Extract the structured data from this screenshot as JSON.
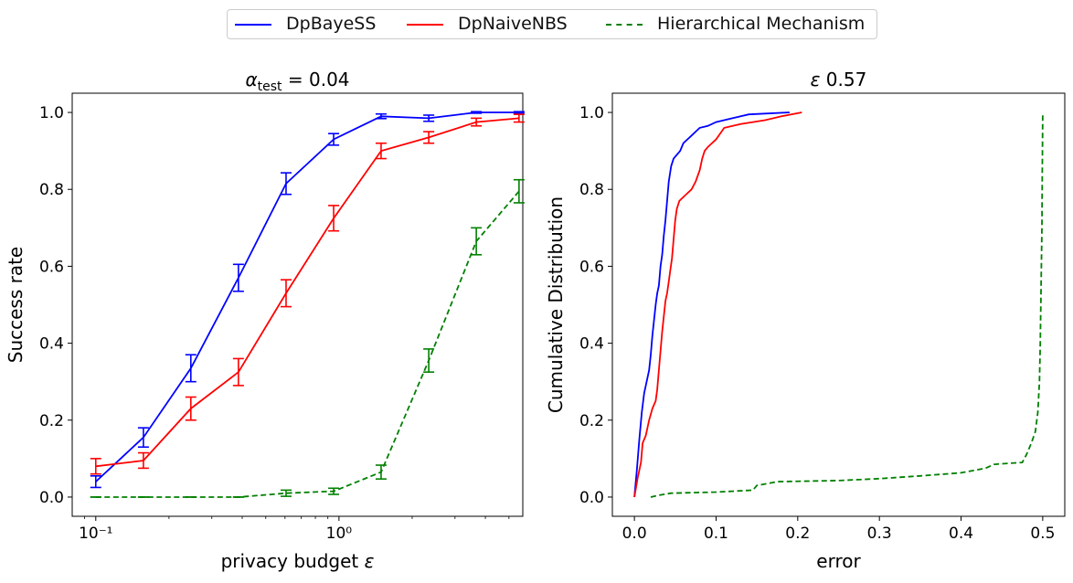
{
  "legend": {
    "items": [
      {
        "label": "DpBayeSS",
        "color": "#0000ff",
        "dash": "solid"
      },
      {
        "label": "DpNaiveNBS",
        "color": "#ff0000",
        "dash": "solid"
      },
      {
        "label": "Hierarchical Mechanism",
        "color": "#008000",
        "dash": "dashed"
      }
    ]
  },
  "chart_data": [
    {
      "type": "line",
      "title_prefix": "α",
      "title_sub": "test",
      "title_suffix": " = 0.04",
      "xlabel": "privacy budget ε",
      "ylabel": "Success rate",
      "xscale": "log",
      "xlim": [
        0.08,
        5.7
      ],
      "ylim": [
        -0.05,
        1.05
      ],
      "yticks": [
        0.0,
        0.2,
        0.4,
        0.6,
        0.8,
        1.0
      ],
      "ytick_labels": [
        "0.0",
        "0.2",
        "0.4",
        "0.6",
        "0.8",
        "1.0"
      ],
      "xticks": [
        0.1,
        1
      ],
      "xtick_labels": [
        "10⁻¹",
        "10⁰"
      ],
      "x": [
        0.1,
        0.157,
        0.246,
        0.386,
        0.606,
        0.951,
        1.49,
        2.34,
        3.67,
        5.5
      ],
      "series": [
        {
          "name": "DpBayeSS",
          "color": "#0000ff",
          "dash": "solid",
          "values": [
            0.04,
            0.155,
            0.335,
            0.57,
            0.815,
            0.93,
            0.99,
            0.985,
            1.0,
            1.0
          ],
          "errors": [
            0.015,
            0.025,
            0.035,
            0.035,
            0.028,
            0.015,
            0.006,
            0.008,
            0.002,
            0.002
          ]
        },
        {
          "name": "DpNaiveNBS",
          "color": "#ff0000",
          "dash": "solid",
          "values": [
            0.08,
            0.095,
            0.23,
            0.325,
            0.53,
            0.725,
            0.9,
            0.935,
            0.975,
            0.985
          ],
          "errors": [
            0.02,
            0.02,
            0.03,
            0.035,
            0.035,
            0.033,
            0.02,
            0.015,
            0.01,
            0.01
          ]
        },
        {
          "name": "Hierarchical Mechanism",
          "color": "#008000",
          "dash": "dashed",
          "values": [
            0.0,
            0.0,
            0.0,
            0.0,
            0.01,
            0.015,
            0.065,
            0.355,
            0.665,
            0.795
          ],
          "errors": [
            0.0,
            0.0,
            0.0,
            0.0,
            0.008,
            0.008,
            0.018,
            0.03,
            0.035,
            0.03
          ]
        }
      ]
    },
    {
      "type": "line",
      "title_prefix": "ε",
      "title_suffix": " 0.57",
      "xlabel": "error",
      "ylabel": "Cumulative Distribution",
      "xlim": [
        -0.027,
        0.527
      ],
      "ylim": [
        -0.05,
        1.05
      ],
      "xticks": [
        0.0,
        0.1,
        0.2,
        0.3,
        0.4,
        0.5
      ],
      "xtick_labels": [
        "0.0",
        "0.1",
        "0.2",
        "0.3",
        "0.4",
        "0.5"
      ],
      "yticks": [
        0.0,
        0.2,
        0.4,
        0.6,
        0.8,
        1.0
      ],
      "ytick_labels": [
        "0.0",
        "0.2",
        "0.4",
        "0.6",
        "0.8",
        "1.0"
      ],
      "series": [
        {
          "name": "DpBayeSS",
          "color": "#0000ff",
          "dash": "solid",
          "points": [
            [
              0.0,
              0.0
            ],
            [
              0.003,
              0.07
            ],
            [
              0.006,
              0.15
            ],
            [
              0.009,
              0.22
            ],
            [
              0.012,
              0.27
            ],
            [
              0.015,
              0.3
            ],
            [
              0.018,
              0.33
            ],
            [
              0.02,
              0.37
            ],
            [
              0.022,
              0.42
            ],
            [
              0.024,
              0.46
            ],
            [
              0.026,
              0.5
            ],
            [
              0.028,
              0.53
            ],
            [
              0.03,
              0.55
            ],
            [
              0.032,
              0.6
            ],
            [
              0.034,
              0.63
            ],
            [
              0.036,
              0.68
            ],
            [
              0.038,
              0.72
            ],
            [
              0.04,
              0.77
            ],
            [
              0.042,
              0.82
            ],
            [
              0.045,
              0.86
            ],
            [
              0.048,
              0.88
            ],
            [
              0.052,
              0.89
            ],
            [
              0.056,
              0.9
            ],
            [
              0.06,
              0.92
            ],
            [
              0.065,
              0.93
            ],
            [
              0.07,
              0.94
            ],
            [
              0.075,
              0.95
            ],
            [
              0.08,
              0.96
            ],
            [
              0.09,
              0.965
            ],
            [
              0.1,
              0.975
            ],
            [
              0.12,
              0.985
            ],
            [
              0.14,
              0.995
            ],
            [
              0.16,
              0.997
            ],
            [
              0.19,
              1.0
            ]
          ]
        },
        {
          "name": "DpNaiveNBS",
          "color": "#ff0000",
          "dash": "solid",
          "points": [
            [
              0.0,
              0.0
            ],
            [
              0.004,
              0.05
            ],
            [
              0.008,
              0.09
            ],
            [
              0.01,
              0.14
            ],
            [
              0.014,
              0.16
            ],
            [
              0.018,
              0.2
            ],
            [
              0.022,
              0.23
            ],
            [
              0.026,
              0.25
            ],
            [
              0.028,
              0.28
            ],
            [
              0.03,
              0.33
            ],
            [
              0.032,
              0.38
            ],
            [
              0.034,
              0.43
            ],
            [
              0.036,
              0.47
            ],
            [
              0.038,
              0.51
            ],
            [
              0.04,
              0.53
            ],
            [
              0.042,
              0.56
            ],
            [
              0.044,
              0.59
            ],
            [
              0.046,
              0.62
            ],
            [
              0.048,
              0.67
            ],
            [
              0.05,
              0.72
            ],
            [
              0.052,
              0.75
            ],
            [
              0.055,
              0.77
            ],
            [
              0.06,
              0.78
            ],
            [
              0.065,
              0.79
            ],
            [
              0.07,
              0.8
            ],
            [
              0.075,
              0.82
            ],
            [
              0.08,
              0.85
            ],
            [
              0.083,
              0.88
            ],
            [
              0.086,
              0.9
            ],
            [
              0.09,
              0.91
            ],
            [
              0.095,
              0.92
            ],
            [
              0.1,
              0.93
            ],
            [
              0.11,
              0.96
            ],
            [
              0.13,
              0.97
            ],
            [
              0.16,
              0.98
            ],
            [
              0.18,
              0.99
            ],
            [
              0.205,
              1.0
            ]
          ]
        },
        {
          "name": "Hierarchical Mechanism",
          "color": "#008000",
          "dash": "dashed",
          "points": [
            [
              0.02,
              0.0
            ],
            [
              0.03,
              0.005
            ],
            [
              0.045,
              0.01
            ],
            [
              0.1,
              0.013
            ],
            [
              0.145,
              0.018
            ],
            [
              0.15,
              0.03
            ],
            [
              0.175,
              0.04
            ],
            [
              0.25,
              0.043
            ],
            [
              0.3,
              0.048
            ],
            [
              0.35,
              0.055
            ],
            [
              0.4,
              0.063
            ],
            [
              0.43,
              0.075
            ],
            [
              0.44,
              0.085
            ],
            [
              0.46,
              0.088
            ],
            [
              0.475,
              0.09
            ],
            [
              0.48,
              0.11
            ],
            [
              0.486,
              0.14
            ],
            [
              0.491,
              0.17
            ],
            [
              0.494,
              0.22
            ],
            [
              0.496,
              0.3
            ],
            [
              0.497,
              0.4
            ],
            [
              0.498,
              0.55
            ],
            [
              0.499,
              0.7
            ],
            [
              0.4995,
              0.85
            ],
            [
              0.5,
              1.0
            ]
          ]
        }
      ]
    }
  ]
}
